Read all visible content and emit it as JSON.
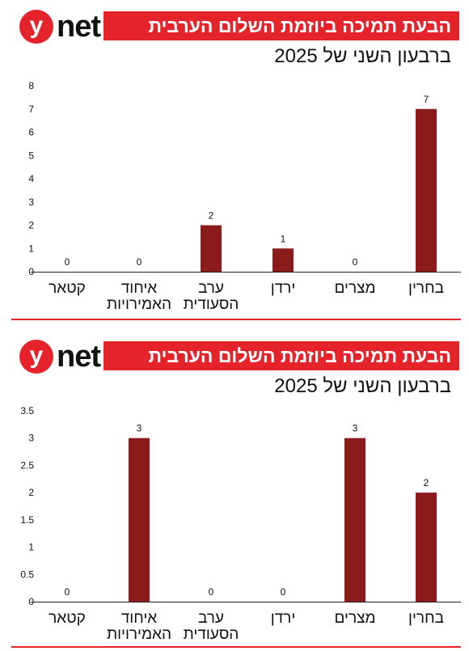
{
  "brand": {
    "logo_letter": "y",
    "logo_word": "net"
  },
  "colors": {
    "brand_red": "#e5232b",
    "bar": "#8b1a1a"
  },
  "panels": [
    {
      "title": "הבעת תמיכה ביוזמת השלום הערבית",
      "subtitle": "ברבעון השני של 2025"
    },
    {
      "title": "הבעת תמיכה ביוזמת השלום הערבית",
      "subtitle": "ברבעון השני של 2025"
    }
  ],
  "chart_data": [
    {
      "type": "bar",
      "categories": [
        "קטאר",
        "איחוד האמירויות",
        "ערב הסעודית",
        "ירדן",
        "מצרים",
        "בחרין"
      ],
      "values": [
        0,
        0,
        2,
        1,
        0,
        7
      ],
      "ylim": [
        0,
        8
      ],
      "yticks": [
        "0",
        "1",
        "2",
        "3",
        "4",
        "5",
        "6",
        "7",
        "8"
      ],
      "data_labels": [
        "0",
        "0",
        "2",
        "1",
        "0",
        "7"
      ],
      "grid": false,
      "legend": "none"
    },
    {
      "type": "bar",
      "categories": [
        "קטאר",
        "איחוד האמירויות",
        "ערב הסעודית",
        "ירדן",
        "מצרים",
        "בחרין"
      ],
      "values": [
        0,
        3,
        0,
        0,
        3,
        2
      ],
      "ylim": [
        0,
        3.5
      ],
      "yticks": [
        "0",
        "0.5",
        "1",
        "1.5",
        "2",
        "2.5",
        "3",
        "3.5"
      ],
      "data_labels": [
        "0",
        "3",
        "0",
        "0",
        "3",
        "2"
      ],
      "grid": false,
      "legend": "none"
    }
  ]
}
